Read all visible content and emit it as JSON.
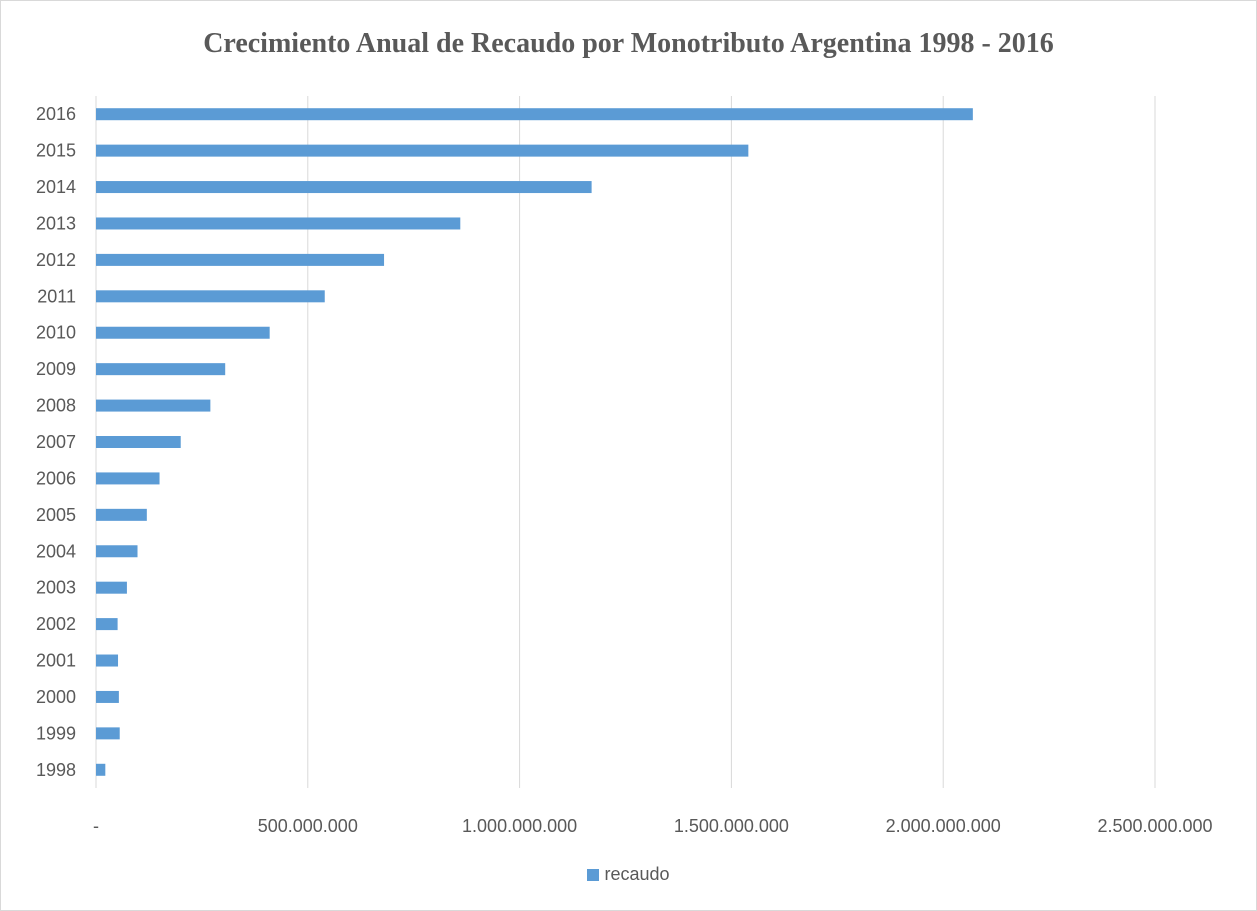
{
  "chart_data": {
    "type": "bar",
    "orientation": "horizontal",
    "title": "Crecimiento Anual de Recaudo por Monotributo Argentina 1998 - 2016",
    "xlabel": "",
    "ylabel": "",
    "xlim": [
      0,
      2500000000
    ],
    "x_ticks": [
      {
        "value": 0,
        "label": "-"
      },
      {
        "value": 500000000,
        "label": "500.000.000"
      },
      {
        "value": 1000000000,
        "label": "1.000.000.000"
      },
      {
        "value": 1500000000,
        "label": "1.500.000.000"
      },
      {
        "value": 2000000000,
        "label": "2.000.000.000"
      },
      {
        "value": 2500000000,
        "label": "2.500.000.000"
      }
    ],
    "grid": "vertical",
    "legend_position": "bottom",
    "bar_color": "#5b9bd5",
    "categories": [
      "1998",
      "1999",
      "2000",
      "2001",
      "2002",
      "2003",
      "2004",
      "2005",
      "2006",
      "2007",
      "2008",
      "2009",
      "2010",
      "2011",
      "2012",
      "2013",
      "2014",
      "2015",
      "2016"
    ],
    "series": [
      {
        "name": "recaudo",
        "values": [
          22000000,
          56000000,
          54000000,
          52000000,
          51000000,
          73000000,
          98000000,
          120000000,
          150000000,
          200000000,
          270000000,
          305000000,
          410000000,
          540000000,
          680000000,
          860000000,
          1170000000,
          1540000000,
          2070000000
        ]
      }
    ]
  }
}
